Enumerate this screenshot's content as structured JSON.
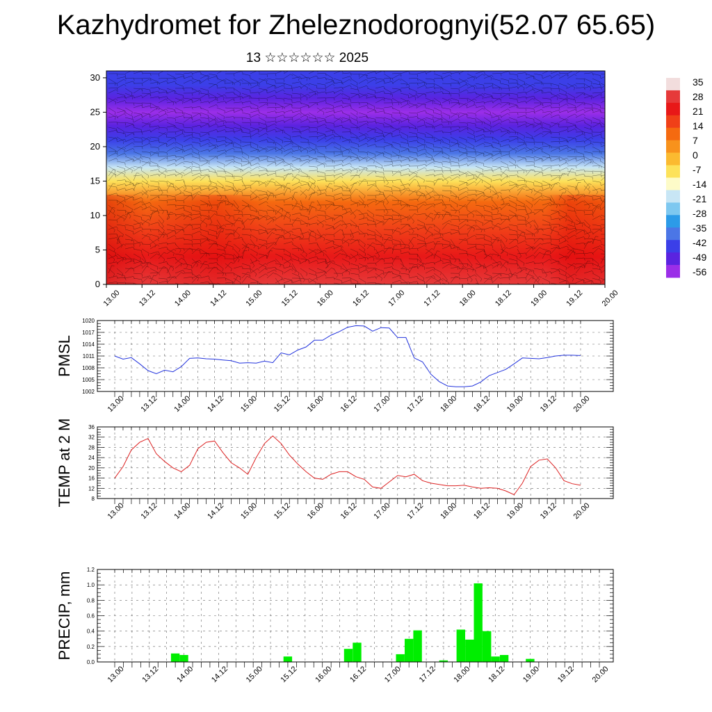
{
  "title": "Kazhydromet for Zheleznodorognyi(52.07 65.65)",
  "subtitle": "13 ☆☆☆☆☆☆ 2025",
  "chart_data": [
    {
      "type": "heatmap",
      "name": "vertical-cross-section",
      "x_tick_labels": [
        "13.00",
        "13.12",
        "14.00",
        "14.12",
        "15.00",
        "15.12",
        "16.00",
        "16.12",
        "17.00",
        "17.12",
        "18.00",
        "18.12",
        "19.00",
        "19.12",
        "20.00"
      ],
      "y_ticks": [
        0,
        5,
        10,
        15,
        20,
        25,
        30
      ],
      "ylim": [
        0,
        31
      ],
      "colorbar_labels": [
        "35",
        "28",
        "21",
        "14",
        "7",
        "0",
        "-7",
        "-14",
        "-21",
        "-28",
        "-35",
        "-42",
        "-49",
        "-56"
      ],
      "colorbar_colors": [
        "#f2dddd",
        "#e63a3a",
        "#e81818",
        "#f04018",
        "#f56a10",
        "#f8921c",
        "#fbba30",
        "#fde25a",
        "#fdfbc8",
        "#c8e6f5",
        "#7ec8f0",
        "#2c9be8",
        "#4b76e6",
        "#3b3fe8",
        "#5a23e0",
        "#9b2ee8"
      ],
      "temperature_profile": {
        "heights": [
          0,
          4,
          8,
          12,
          15,
          17,
          19,
          21,
          23,
          25,
          27,
          29,
          31
        ],
        "values": [
          30,
          24,
          18,
          10,
          -6,
          -22,
          -38,
          -48,
          -54,
          -58,
          -54,
          -50,
          -48
        ]
      }
    },
    {
      "type": "line",
      "ylabel": "PMSL",
      "y_ticks": [
        1002,
        1005,
        1008,
        1011,
        1014,
        1017,
        1020
      ],
      "ylim": [
        1002,
        1020
      ],
      "x_tick_labels": [
        "13.00",
        "13.12",
        "14.00",
        "14.12",
        "15.00",
        "15.12",
        "16.00",
        "16.12",
        "17.00",
        "17.12",
        "18.00",
        "18.12",
        "19.00",
        "19.12",
        "20.00"
      ],
      "color": "#2233dd",
      "values": [
        1011,
        1010.2,
        1010.6,
        1009,
        1007.3,
        1006.5,
        1007.4,
        1007,
        1008.3,
        1010.4,
        1010.5,
        1010.3,
        1010.2,
        1010,
        1009.8,
        1009.2,
        1009.3,
        1009.2,
        1009.7,
        1009.3,
        1011.8,
        1011.3,
        1012.5,
        1013.3,
        1015,
        1015,
        1016.3,
        1017.2,
        1018.3,
        1018.7,
        1018.6,
        1017.3,
        1018.2,
        1018.1,
        1015.7,
        1015.7,
        1010.5,
        1009.5,
        1006.4,
        1004.5,
        1003.4,
        1003.2,
        1003.2,
        1003.4,
        1004.4,
        1006,
        1006.8,
        1007.6,
        1009,
        1010.5,
        1010.4,
        1010.3,
        1010.6,
        1011,
        1011.2,
        1011.2,
        1011.1
      ]
    },
    {
      "type": "line",
      "ylabel": "TEMP at 2 M",
      "y_ticks": [
        8,
        12,
        16,
        20,
        24,
        28,
        32,
        36
      ],
      "ylim": [
        8,
        36
      ],
      "x_tick_labels": [
        "13.00",
        "13.12",
        "14.00",
        "14.12",
        "15.00",
        "15.12",
        "16.00",
        "16.12",
        "17.00",
        "17.12",
        "18.00",
        "18.12",
        "19.00",
        "19.12",
        "20.00"
      ],
      "color": "#dd2222",
      "values": [
        16,
        20.5,
        27,
        30,
        31.5,
        25.5,
        22.5,
        20,
        18.5,
        21,
        27.5,
        30,
        30.5,
        26,
        22,
        20,
        17.5,
        24,
        29.5,
        32.5,
        29.5,
        25,
        21.5,
        18.5,
        16,
        15.5,
        17.5,
        18.5,
        18.5,
        16.5,
        15.5,
        12.5,
        12,
        14.5,
        17,
        16.5,
        17.5,
        15,
        14,
        13.5,
        13,
        13,
        13.2,
        12.5,
        12,
        12.2,
        12,
        11,
        9.5,
        14,
        20.5,
        23,
        23.5,
        20,
        15,
        13.8,
        13.2
      ]
    },
    {
      "type": "bar",
      "ylabel": "PRECIP, mm",
      "y_ticks": [
        "0.0",
        "0.2",
        "0.4",
        "0.6",
        "0.8",
        "1.0",
        "1.2"
      ],
      "ylim": [
        0,
        1.2
      ],
      "x_tick_labels": [
        "13.00",
        "13.12",
        "14.00",
        "14.12",
        "15.00",
        "15.12",
        "16.00",
        "16.12",
        "17.00",
        "17.12",
        "18.00",
        "18.12",
        "19.00",
        "19.12",
        "20.00"
      ],
      "color": "#00ee00",
      "values": [
        0,
        0,
        0,
        0,
        0,
        0,
        0,
        0.11,
        0.09,
        0,
        0,
        0,
        0,
        0,
        0,
        0,
        0,
        0,
        0,
        0,
        0.07,
        0,
        0,
        0,
        0,
        0,
        0,
        0.17,
        0.25,
        0,
        0,
        0,
        0,
        0.1,
        0.3,
        0.41,
        0,
        0,
        0.02,
        0,
        0.42,
        0.29,
        1.02,
        0.4,
        0.07,
        0.09,
        0,
        0,
        0.04,
        0,
        0,
        0,
        0,
        0,
        0,
        0,
        0
      ]
    }
  ]
}
